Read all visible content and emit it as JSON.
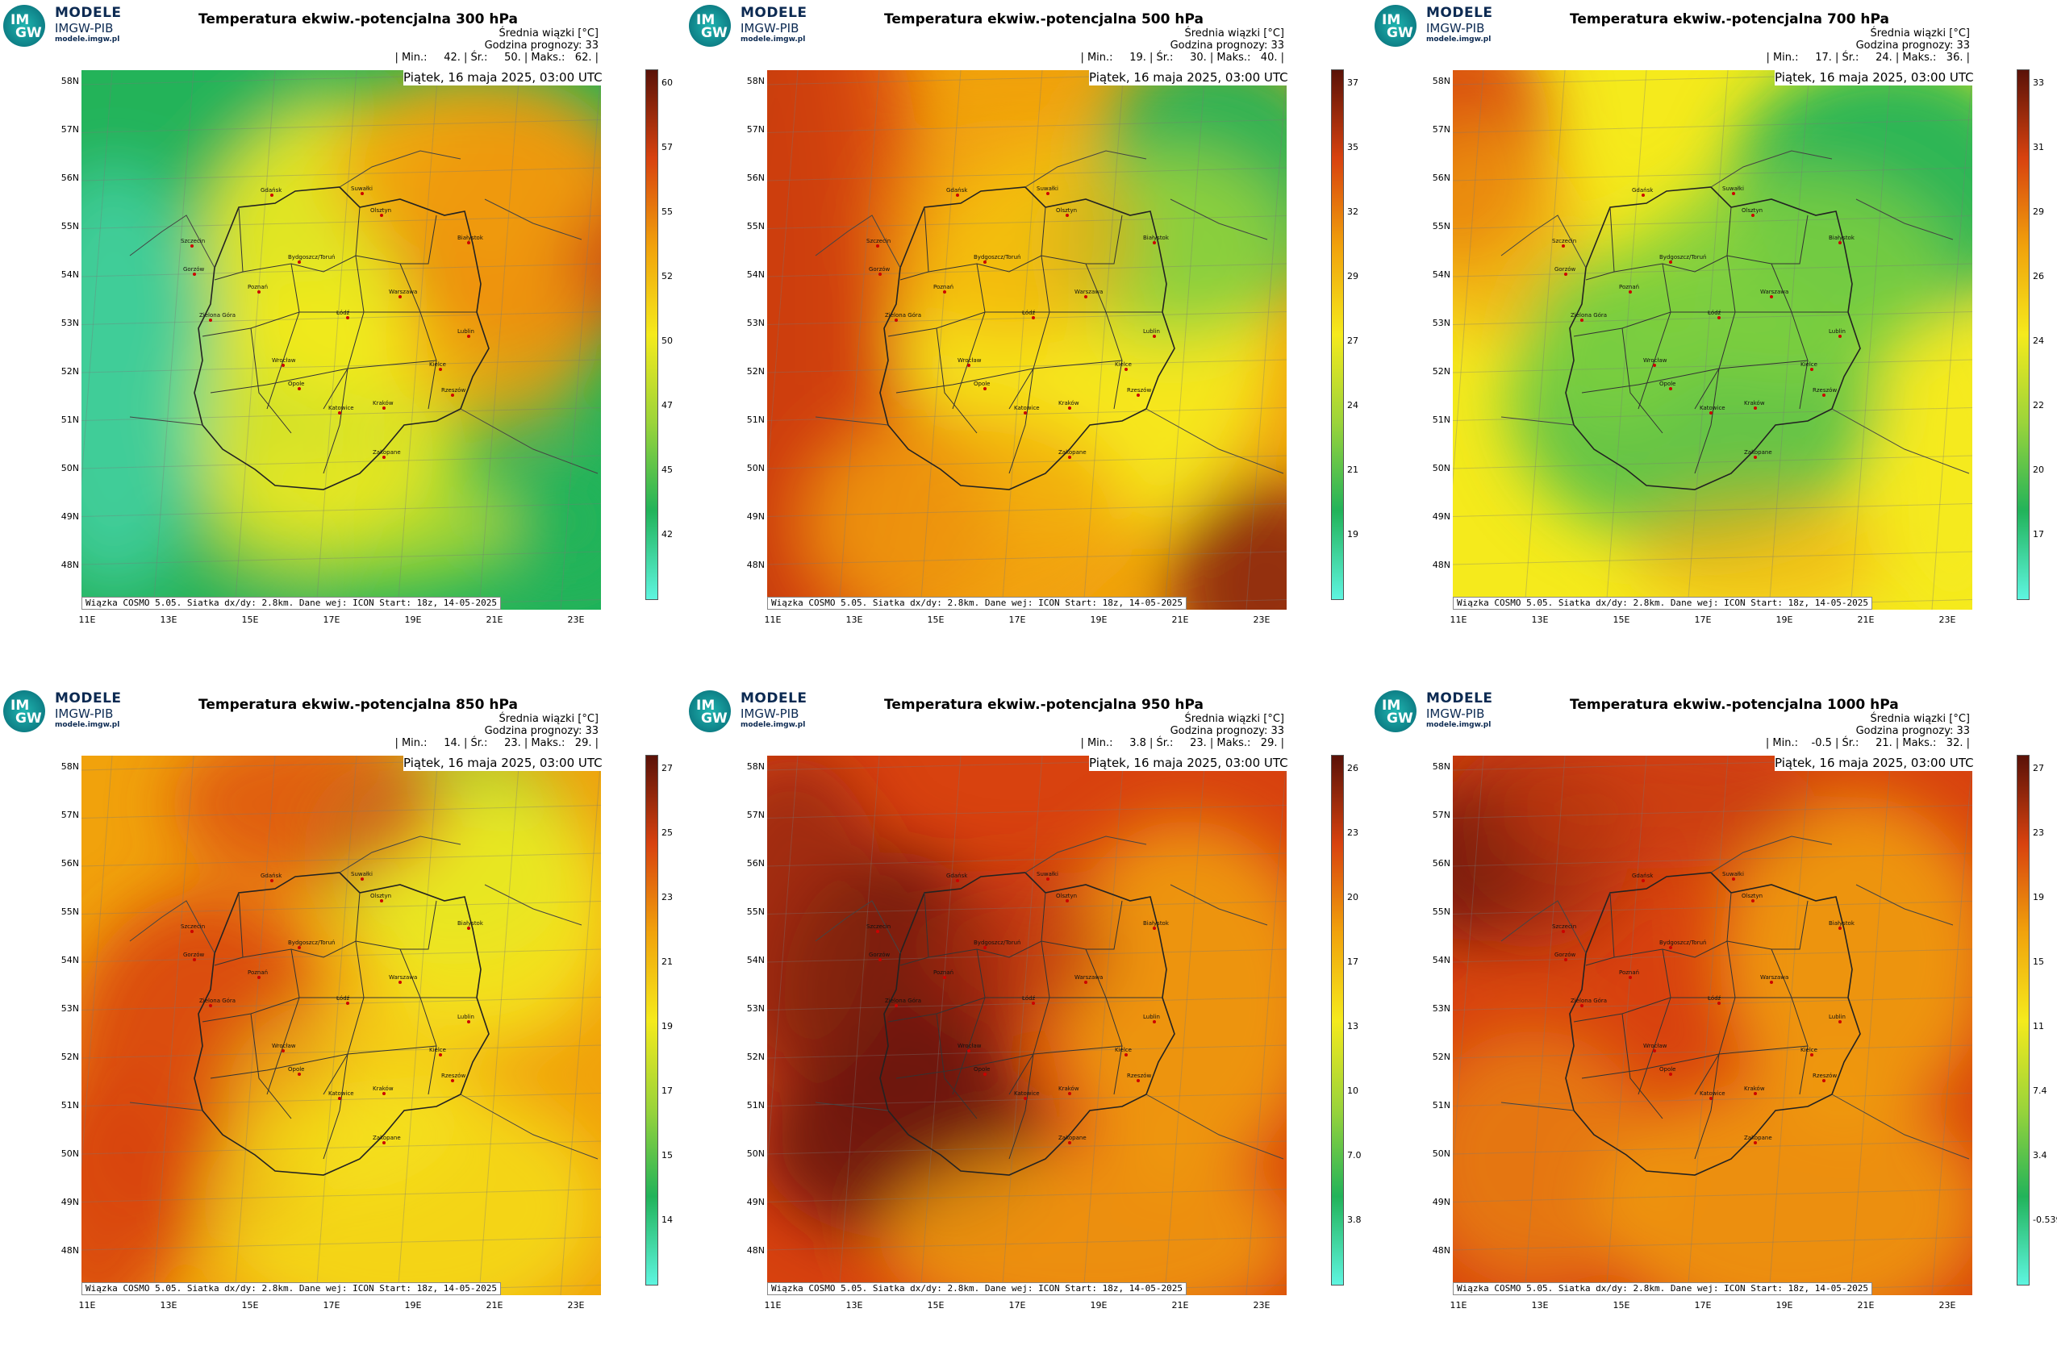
{
  "logo": {
    "circle_top": "IM",
    "circle_bottom": "GW",
    "line1": "MODELE",
    "line2": "IMGW-PIB",
    "line3": "modele.imgw.pl"
  },
  "common": {
    "header_mean": "Średnia wiązki [°C]",
    "header_hour": "Godzina prognozy: 33",
    "date": "Piątek, 16 maja 2025, 03:00 UTC",
    "footer": "Wiązka COSMO 5.05. Siatka dx/dy: 2.8km. Dane wej: ICON Start: 18z, 14-05-2025",
    "lat_labels": [
      "58N",
      "57N",
      "56N",
      "55N",
      "54N",
      "53N",
      "52N",
      "51N",
      "50N",
      "49N",
      "48N"
    ],
    "lon_labels": [
      "11E",
      "13E",
      "15E",
      "17E",
      "19E",
      "21E",
      "23E"
    ],
    "cities": [
      "Gdańsk",
      "Suwałki",
      "Olsztyn",
      "Szczecin",
      "Białystok",
      "Bydgoszcz/Toruń",
      "Gorzów",
      "Poznań",
      "Warszawa",
      "Zielona Góra",
      "Łódź",
      "Lublin",
      "Wrocław",
      "Kielce",
      "Opole",
      "Rzeszów",
      "Katowice",
      "Kraków",
      "Zakopane"
    ],
    "colors": {
      "cyan": "#5ef5e0",
      "green": "#22b35a",
      "yellow": "#f5ea1c",
      "orange": "#f1a20c",
      "red": "#d8420f",
      "darkred": "#5a1208"
    }
  },
  "panels": [
    {
      "title": "Temperatura ekwiw.-potencjalna 300 hPa",
      "stats": "| Min.:     42. | Śr.:     50. | Maks.:   62. |",
      "colorbar": [
        "60",
        "57",
        "55",
        "52",
        "50",
        "47",
        "45",
        "42"
      ],
      "pattern": "p300"
    },
    {
      "title": "Temperatura ekwiw.-potencjalna 500 hPa",
      "stats": "| Min.:     19. | Śr.:     30. | Maks.:   40. |",
      "colorbar": [
        "37",
        "35",
        "32",
        "29",
        "27",
        "24",
        "21",
        "19"
      ],
      "pattern": "p500"
    },
    {
      "title": "Temperatura ekwiw.-potencjalna 700 hPa",
      "stats": "| Min.:     17. | Śr.:     24. | Maks.:   36. |",
      "colorbar": [
        "33",
        "31",
        "29",
        "26",
        "24",
        "22",
        "20",
        "17"
      ],
      "pattern": "p700"
    },
    {
      "title": "Temperatura ekwiw.-potencjalna 850 hPa",
      "stats": "| Min.:     14. | Śr.:     23. | Maks.:   29. |",
      "colorbar": [
        "27",
        "25",
        "23",
        "21",
        "19",
        "17",
        "15",
        "14"
      ],
      "pattern": "p850"
    },
    {
      "title": "Temperatura ekwiw.-potencjalna 950 hPa",
      "stats": "| Min.:     3.8 | Śr.:     23. | Maks.:   29. |",
      "colorbar": [
        "26",
        "23",
        "20",
        "17",
        "13",
        "10",
        "7.0",
        "3.8"
      ],
      "pattern": "p950"
    },
    {
      "title": "Temperatura ekwiw.-potencjalna 1000 hPa",
      "stats": "| Min.:    -0.5 | Śr.:     21. | Maks.:   32. |",
      "colorbar": [
        "27",
        "23",
        "19",
        "15",
        "11",
        "7.4",
        "3.4",
        "-0.539"
      ],
      "pattern": "p1000"
    }
  ]
}
